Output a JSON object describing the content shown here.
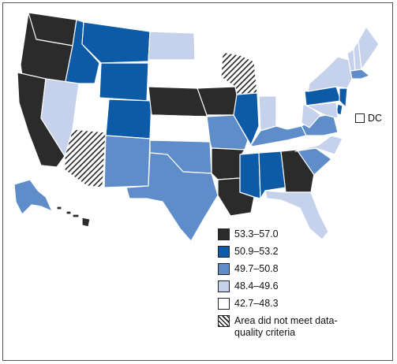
{
  "colors": {
    "c1": "#2b2b2b",
    "c2": "#0d5aa7",
    "c3": "#5f8dc9",
    "c4": "#c6d1ec",
    "c5": "#ffffff",
    "border": "#555555"
  },
  "legend": {
    "items": [
      {
        "label": "53.3–57.0",
        "class": "c1"
      },
      {
        "label": "50.9–53.2",
        "class": "c2"
      },
      {
        "label": "49.7–50.8",
        "class": "c3"
      },
      {
        "label": "48.4–49.6",
        "class": "c4"
      },
      {
        "label": "42.7–48.3",
        "class": "c5"
      }
    ],
    "hatch_label": "Area did not meet data-quality criteria"
  },
  "dc": {
    "label": "DC",
    "class": "c5"
  },
  "states": {
    "WA": "c1",
    "OR": "c1",
    "CA": "c1",
    "ID": "c2",
    "MT": "c2",
    "WY": "c2",
    "NV": "c4",
    "UT": "c5",
    "AZ": "hatch",
    "CO": "c2",
    "NM": "c3",
    "ND": "c4",
    "SD": "c5",
    "NE": "c1",
    "KS": "c5",
    "OK": "c3",
    "TX": "c3",
    "MN": "c5",
    "IA": "c1",
    "MO": "c3",
    "AR": "c1",
    "LA": "c1",
    "WI": "hatch",
    "IL": "c2",
    "MI": "c5",
    "IN": "c4",
    "OH": "c5",
    "KY": "c3",
    "TN": "c5",
    "MS": "c2",
    "AL": "c2",
    "GA": "c1",
    "FL": "c4",
    "SC": "c3",
    "NC": "c4",
    "VA": "c3",
    "WV": "c4",
    "PA": "c2",
    "NY": "c4",
    "VT": "c4",
    "NH": "c4",
    "ME": "c4",
    "MA": "c3",
    "CT": "c5",
    "RI": "c5",
    "NJ": "c2",
    "DE": "c2",
    "MD": "c4",
    "AK": "c3",
    "HI": "c1"
  }
}
